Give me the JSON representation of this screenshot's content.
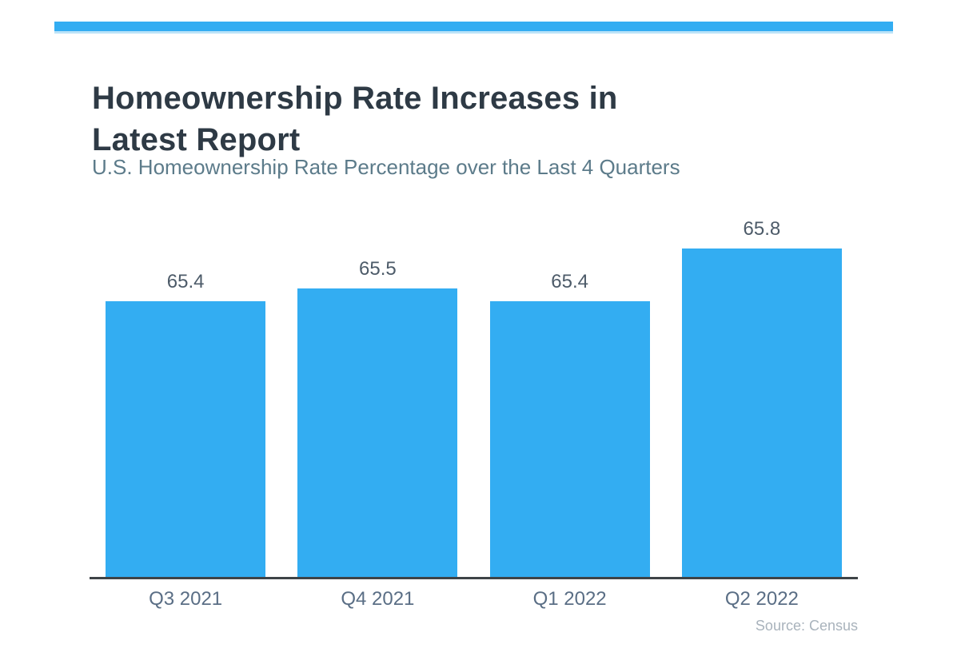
{
  "page": {
    "background": "#ffffff",
    "accent_color": "#33adf2",
    "accent_underline_color": "#bce3f8"
  },
  "header": {
    "title": "Homeownership Rate Increases in Latest Report",
    "title_lines": [
      "Homeownership Rate Increases in",
      "Latest Report"
    ],
    "subtitle": "U.S. Homeownership Rate Percentage over the Last 4 Quarters"
  },
  "chart_data": {
    "type": "bar",
    "title": "Homeownership Rate Increases in Latest Report",
    "subtitle": "U.S. Homeownership Rate Percentage over the Last 4 Quarters",
    "categories": [
      "Q3 2021",
      "Q4 2021",
      "Q1 2022",
      "Q2 2022"
    ],
    "values": [
      65.4,
      65.5,
      65.4,
      65.8
    ],
    "value_labels": [
      "65.4",
      "65.5",
      "65.4",
      "65.8"
    ],
    "xlabel": "",
    "ylabel": "",
    "ylim": [
      63.3,
      66.1
    ],
    "grid": false,
    "legend": "none",
    "y_axis_ticks_visible": false,
    "data_labels": true,
    "bar_color": "#33adf2",
    "axis_line_color": "#3e4347",
    "source": "Source: Census"
  },
  "footer": {
    "source": "Source: Census"
  }
}
